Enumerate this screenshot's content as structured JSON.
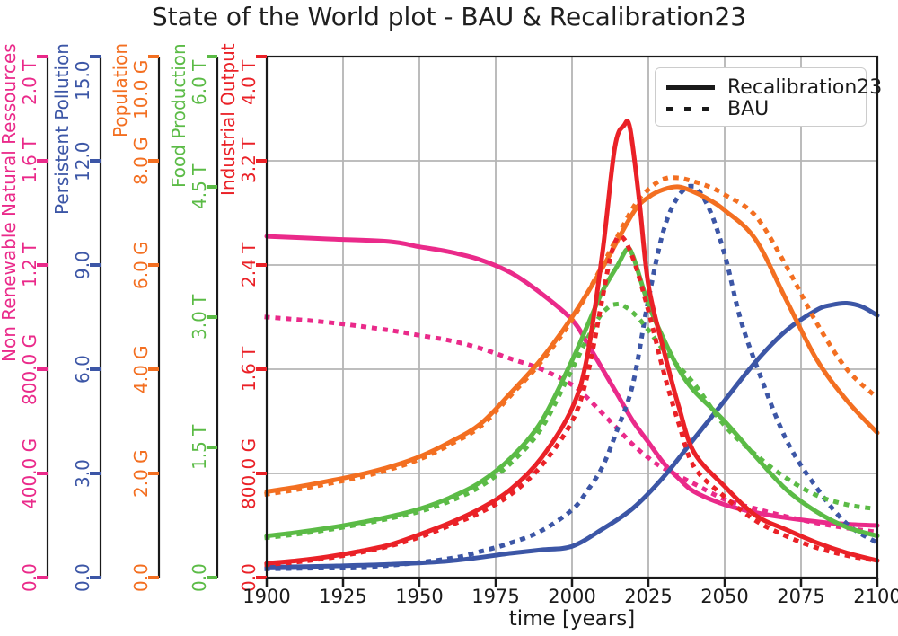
{
  "chart_data": {
    "type": "line",
    "title": "State of the World plot - BAU & Recalibration23",
    "xlabel": "time [years]",
    "grid": true,
    "grid_color": "#b5b5b5",
    "spine_color": "#1a1a1a",
    "x_axis": {
      "min": 1900,
      "max": 2100,
      "ticks": [
        1900,
        1925,
        1950,
        1975,
        2000,
        2025,
        2050,
        2075,
        2100
      ]
    },
    "y_axes": [
      {
        "id": "resources",
        "label": "Non Renewable Natural Ressources",
        "color": "#ea2a8a",
        "min": 0,
        "max": 2.0,
        "tick_labels": [
          "0.0",
          "400.0 G",
          "800.0 G",
          "1.2 T",
          "1.6 T",
          "2.0 T"
        ]
      },
      {
        "id": "pollution",
        "label": "Persistent Pollution",
        "color": "#3c56a6",
        "min": 0,
        "max": 15.0,
        "tick_labels": [
          "0.0",
          "3.0",
          "6.0",
          "9.0",
          "12.0",
          "15.0"
        ]
      },
      {
        "id": "population",
        "label": "Population",
        "color": "#f36f21",
        "min": 0,
        "max": 10.0,
        "tick_labels": [
          "0.0",
          "2.0 G",
          "4.0 G",
          "6.0 G",
          "8.0 G",
          "10.0 G"
        ]
      },
      {
        "id": "food",
        "label": "Food Production",
        "color": "#5bbb46",
        "min": 0,
        "max": 6.0,
        "tick_labels": [
          "0.0",
          "1.5 T",
          "3.0 T",
          "4.5 T",
          "6.0 T"
        ]
      },
      {
        "id": "industrial",
        "label": "Industrial Output",
        "color": "#ea2127",
        "min": 0,
        "max": 4.0,
        "tick_labels": [
          "0.0",
          "800.0 G",
          "1.6 T",
          "2.4 T",
          "3.2 T",
          "4.0 T"
        ]
      }
    ],
    "legend": {
      "position": "upper right",
      "entries": [
        {
          "label": "Recalibration23",
          "style": "solid"
        },
        {
          "label": "BAU",
          "style": "dotted"
        }
      ]
    },
    "series": [
      {
        "name": "Non Renewable Natural Ressources (BAU)",
        "axis": "resources",
        "scenario": "BAU",
        "style": "dotted",
        "x": [
          1900,
          1920,
          1940,
          1950,
          1960,
          1970,
          1980,
          1990,
          2000,
          2005,
          2010,
          2015,
          2020,
          2025,
          2030,
          2040,
          2050,
          2060,
          2070,
          2080,
          2090,
          2100
        ],
        "y": [
          1.0,
          0.98,
          0.95,
          0.93,
          0.91,
          0.88,
          0.84,
          0.8,
          0.74,
          0.69,
          0.63,
          0.57,
          0.51,
          0.46,
          0.42,
          0.36,
          0.3,
          0.265,
          0.235,
          0.21,
          0.19,
          0.175
        ]
      },
      {
        "name": "Non Renewable Natural Ressources (Recalibration23)",
        "axis": "resources",
        "scenario": "Recalibration23",
        "style": "solid",
        "x": [
          1900,
          1920,
          1940,
          1950,
          1960,
          1970,
          1980,
          1990,
          2000,
          2005,
          2010,
          2015,
          2020,
          2025,
          2030,
          2035,
          2040,
          2050,
          2060,
          2070,
          2080,
          2090,
          2100
        ],
        "y": [
          1.31,
          1.3,
          1.29,
          1.27,
          1.25,
          1.22,
          1.17,
          1.09,
          0.99,
          0.9,
          0.8,
          0.7,
          0.6,
          0.52,
          0.44,
          0.38,
          0.33,
          0.28,
          0.25,
          0.23,
          0.215,
          0.205,
          0.2
        ]
      },
      {
        "name": "Persistent Pollution (BAU)",
        "axis": "pollution",
        "scenario": "BAU",
        "style": "dotted",
        "x": [
          1900,
          1920,
          1940,
          1960,
          1970,
          1980,
          1990,
          2000,
          2005,
          2010,
          2015,
          2020,
          2025,
          2030,
          2035,
          2040,
          2045,
          2050,
          2055,
          2060,
          2070,
          2080,
          2090,
          2100
        ],
        "y": [
          0.25,
          0.28,
          0.35,
          0.55,
          0.75,
          1.0,
          1.35,
          1.95,
          2.5,
          3.2,
          4.3,
          5.6,
          8.0,
          10.0,
          11.0,
          11.25,
          10.6,
          9.3,
          7.5,
          6.2,
          4.0,
          2.6,
          1.55,
          1.0
        ]
      },
      {
        "name": "Persistent Pollution (Recalibration23)",
        "axis": "pollution",
        "scenario": "Recalibration23",
        "style": "solid",
        "x": [
          1900,
          1920,
          1940,
          1960,
          1980,
          1990,
          2000,
          2010,
          2020,
          2030,
          2040,
          2050,
          2060,
          2070,
          2080,
          2085,
          2090,
          2095,
          2100
        ],
        "y": [
          0.3,
          0.33,
          0.38,
          0.48,
          0.7,
          0.8,
          0.9,
          1.4,
          2.0,
          2.9,
          4.0,
          5.1,
          6.2,
          7.1,
          7.7,
          7.85,
          7.9,
          7.8,
          7.55
        ]
      },
      {
        "name": "Population (BAU)",
        "axis": "population",
        "scenario": "BAU",
        "style": "dotted",
        "x": [
          1900,
          1910,
          1920,
          1930,
          1940,
          1950,
          1960,
          1970,
          1980,
          1990,
          2000,
          2010,
          2020,
          2025,
          2030,
          2035,
          2040,
          2045,
          2050,
          2060,
          2070,
          2080,
          2090,
          2100
        ],
        "y": [
          1.6,
          1.69,
          1.8,
          1.92,
          2.07,
          2.27,
          2.55,
          2.9,
          3.5,
          4.15,
          4.95,
          6.0,
          7.1,
          7.45,
          7.65,
          7.67,
          7.6,
          7.5,
          7.35,
          6.95,
          6.0,
          4.9,
          4.0,
          3.45
        ]
      },
      {
        "name": "Population (Recalibration23)",
        "axis": "population",
        "scenario": "Recalibration23",
        "style": "solid",
        "x": [
          1900,
          1910,
          1920,
          1930,
          1940,
          1950,
          1960,
          1970,
          1980,
          1990,
          2000,
          2010,
          2020,
          2025,
          2030,
          2035,
          2040,
          2045,
          2050,
          2060,
          2070,
          2080,
          2090,
          2100
        ],
        "y": [
          1.65,
          1.74,
          1.85,
          1.97,
          2.12,
          2.32,
          2.6,
          2.95,
          3.55,
          4.2,
          5.0,
          5.95,
          7.0,
          7.3,
          7.45,
          7.5,
          7.4,
          7.25,
          7.05,
          6.5,
          5.35,
          4.2,
          3.4,
          2.78
        ]
      },
      {
        "name": "Food Production (BAU)",
        "axis": "food",
        "scenario": "BAU",
        "style": "dotted",
        "x": [
          1900,
          1910,
          1920,
          1930,
          1940,
          1950,
          1960,
          1970,
          1980,
          1990,
          2000,
          2005,
          2010,
          2015,
          2020,
          2025,
          2030,
          2040,
          2050,
          2060,
          2070,
          2080,
          2090,
          2100
        ],
        "y": [
          0.46,
          0.5,
          0.55,
          0.61,
          0.68,
          0.76,
          0.88,
          1.05,
          1.32,
          1.72,
          2.4,
          2.75,
          3.05,
          3.15,
          3.05,
          2.85,
          2.62,
          2.23,
          1.75,
          1.42,
          1.15,
          0.95,
          0.84,
          0.79
        ]
      },
      {
        "name": "Food Production (Recalibration23)",
        "axis": "food",
        "scenario": "Recalibration23",
        "style": "solid",
        "x": [
          1900,
          1910,
          1920,
          1930,
          1940,
          1950,
          1960,
          1970,
          1980,
          1990,
          2000,
          2005,
          2010,
          2015,
          2018,
          2020,
          2025,
          2030,
          2035,
          2040,
          2050,
          2060,
          2070,
          2080,
          2090,
          2100
        ],
        "y": [
          0.48,
          0.52,
          0.57,
          0.63,
          0.7,
          0.79,
          0.92,
          1.1,
          1.38,
          1.8,
          2.5,
          2.9,
          3.3,
          3.6,
          3.78,
          3.7,
          3.15,
          2.75,
          2.4,
          2.15,
          1.8,
          1.4,
          1.02,
          0.76,
          0.58,
          0.48
        ]
      },
      {
        "name": "Industrial Output (BAU)",
        "axis": "industrial",
        "scenario": "BAU",
        "style": "dotted",
        "x": [
          1900,
          1910,
          1920,
          1930,
          1940,
          1950,
          1960,
          1970,
          1980,
          1990,
          2000,
          2005,
          2010,
          2013,
          2016,
          2020,
          2025,
          2030,
          2035,
          2040,
          2050,
          2060,
          2070,
          2080,
          2090,
          2100
        ],
        "y": [
          0.1,
          0.12,
          0.15,
          0.19,
          0.24,
          0.31,
          0.4,
          0.5,
          0.64,
          0.86,
          1.2,
          1.55,
          2.15,
          2.5,
          2.62,
          2.45,
          2.05,
          1.58,
          1.18,
          0.85,
          0.62,
          0.44,
          0.32,
          0.23,
          0.17,
          0.13
        ]
      },
      {
        "name": "Industrial Output (Recalibration23)",
        "axis": "industrial",
        "scenario": "Recalibration23",
        "style": "solid",
        "x": [
          1900,
          1910,
          1920,
          1930,
          1940,
          1950,
          1960,
          1970,
          1980,
          1990,
          2000,
          2005,
          2010,
          2014,
          2017,
          2019,
          2022,
          2025,
          2030,
          2035,
          2040,
          2050,
          2060,
          2070,
          2080,
          2090,
          2100
        ],
        "y": [
          0.11,
          0.13,
          0.16,
          0.2,
          0.25,
          0.33,
          0.42,
          0.53,
          0.68,
          0.92,
          1.3,
          1.7,
          2.5,
          3.3,
          3.47,
          3.45,
          2.9,
          2.25,
          1.75,
          1.31,
          0.96,
          0.7,
          0.48,
          0.37,
          0.27,
          0.19,
          0.13
        ]
      }
    ]
  }
}
